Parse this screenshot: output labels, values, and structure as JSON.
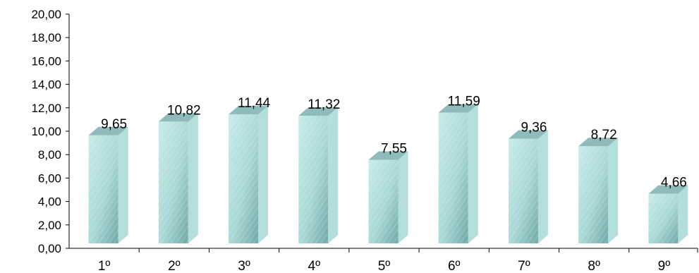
{
  "chart_data": {
    "type": "bar",
    "style": "3d-column",
    "categories": [
      "1º",
      "2º",
      "3º",
      "4º",
      "5º",
      "6º",
      "7º",
      "8º",
      "9º"
    ],
    "values": [
      9.65,
      10.82,
      11.44,
      11.32,
      7.55,
      11.59,
      9.36,
      8.72,
      4.66
    ],
    "value_labels": [
      "9,65",
      "10,82",
      "11,44",
      "11,32",
      "7,55",
      "11,59",
      "9,36",
      "8,72",
      "4,66"
    ],
    "ylim": [
      0,
      20
    ],
    "ytick_labels": [
      "0,00",
      "2,00",
      "4,00",
      "6,00",
      "8,00",
      "10,00",
      "12,00",
      "14,00",
      "16,00",
      "18,00",
      "20,00"
    ],
    "title": "",
    "xlabel": "",
    "ylabel": "",
    "grid": false,
    "legend": "none",
    "colors": {
      "bar_front": "#9fcfcd",
      "bar_front_light": "#c9ecea",
      "bar_side": "#b4dedc",
      "bar_top": "#8fbcba"
    }
  }
}
